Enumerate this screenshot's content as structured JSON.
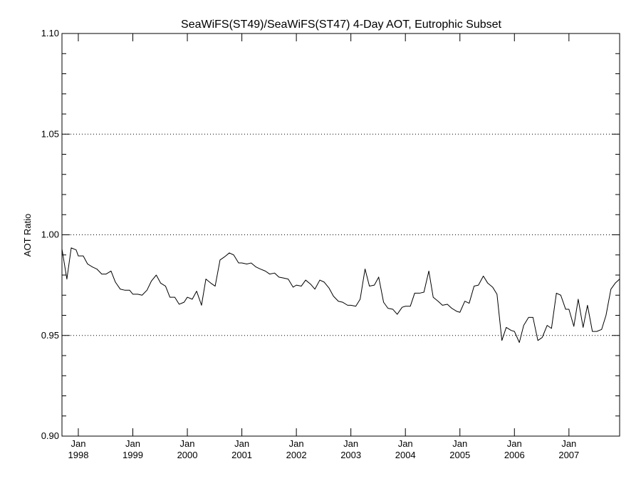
{
  "chart_data": {
    "type": "line",
    "title": "SeaWiFS(ST49)/SeaWiFS(ST47) 4-Day AOT, Eutrophic Subset",
    "xlabel": "",
    "ylabel": "AOT Ratio",
    "xlim": [
      1997.7,
      2007.93
    ],
    "ylim": [
      0.9,
      1.1
    ],
    "yticks": [
      0.9,
      0.95,
      1.0,
      1.05,
      1.1
    ],
    "ytick_labels": [
      "0.90",
      "0.95",
      "1.00",
      "1.05",
      "1.10"
    ],
    "ygrid": [
      0.95,
      1.0,
      1.05
    ],
    "xticks": [
      {
        "x": 1998.0,
        "top": "Jan",
        "bottom": "1998"
      },
      {
        "x": 1999.0,
        "top": "Jan",
        "bottom": "1999"
      },
      {
        "x": 2000.0,
        "top": "Jan",
        "bottom": "2000"
      },
      {
        "x": 2001.0,
        "top": "Jan",
        "bottom": "2001"
      },
      {
        "x": 2002.0,
        "top": "Jan",
        "bottom": "2002"
      },
      {
        "x": 2003.0,
        "top": "Jan",
        "bottom": "2003"
      },
      {
        "x": 2004.0,
        "top": "Jan",
        "bottom": "2004"
      },
      {
        "x": 2005.0,
        "top": "Jan",
        "bottom": "2005"
      },
      {
        "x": 2006.0,
        "top": "Jan",
        "bottom": "2006"
      },
      {
        "x": 2007.0,
        "top": "Jan",
        "bottom": "2007"
      }
    ],
    "series": [
      {
        "color": "#000000",
        "points": [
          [
            1997.7,
            0.993
          ],
          [
            1997.79,
            0.978
          ],
          [
            1997.87,
            0.9935
          ],
          [
            1997.96,
            0.9925
          ],
          [
            1998.0,
            0.9895
          ],
          [
            1998.09,
            0.9895
          ],
          [
            1998.17,
            0.9855
          ],
          [
            1998.26,
            0.984
          ],
          [
            1998.34,
            0.983
          ],
          [
            1998.43,
            0.9805
          ],
          [
            1998.51,
            0.9805
          ],
          [
            1998.6,
            0.982
          ],
          [
            1998.68,
            0.9765
          ],
          [
            1998.77,
            0.973
          ],
          [
            1998.85,
            0.9725
          ],
          [
            1998.94,
            0.9725
          ],
          [
            1999.0,
            0.9705
          ],
          [
            1999.09,
            0.9705
          ],
          [
            1999.17,
            0.97
          ],
          [
            1999.26,
            0.9725
          ],
          [
            1999.34,
            0.977
          ],
          [
            1999.43,
            0.98
          ],
          [
            1999.51,
            0.976
          ],
          [
            1999.6,
            0.9745
          ],
          [
            1999.68,
            0.969
          ],
          [
            1999.77,
            0.969
          ],
          [
            1999.85,
            0.9655
          ],
          [
            1999.94,
            0.9665
          ],
          [
            2000.0,
            0.969
          ],
          [
            2000.09,
            0.968
          ],
          [
            2000.17,
            0.972
          ],
          [
            2000.26,
            0.965
          ],
          [
            2000.34,
            0.978
          ],
          [
            2000.43,
            0.976
          ],
          [
            2000.51,
            0.9745
          ],
          [
            2000.6,
            0.9875
          ],
          [
            2000.68,
            0.989
          ],
          [
            2000.77,
            0.991
          ],
          [
            2000.85,
            0.99
          ],
          [
            2000.94,
            0.986
          ],
          [
            2001.0,
            0.986
          ],
          [
            2001.09,
            0.9855
          ],
          [
            2001.17,
            0.986
          ],
          [
            2001.26,
            0.984
          ],
          [
            2001.34,
            0.983
          ],
          [
            2001.43,
            0.982
          ],
          [
            2001.51,
            0.9805
          ],
          [
            2001.6,
            0.981
          ],
          [
            2001.68,
            0.979
          ],
          [
            2001.77,
            0.9785
          ],
          [
            2001.85,
            0.978
          ],
          [
            2001.94,
            0.974
          ],
          [
            2002.0,
            0.975
          ],
          [
            2002.09,
            0.9745
          ],
          [
            2002.17,
            0.9775
          ],
          [
            2002.26,
            0.9755
          ],
          [
            2002.34,
            0.973
          ],
          [
            2002.43,
            0.9775
          ],
          [
            2002.51,
            0.9765
          ],
          [
            2002.6,
            0.9735
          ],
          [
            2002.68,
            0.9695
          ],
          [
            2002.77,
            0.967
          ],
          [
            2002.85,
            0.9665
          ],
          [
            2002.94,
            0.965
          ],
          [
            2003.0,
            0.965
          ],
          [
            2003.09,
            0.9645
          ],
          [
            2003.17,
            0.968
          ],
          [
            2003.26,
            0.983
          ],
          [
            2003.34,
            0.9745
          ],
          [
            2003.43,
            0.975
          ],
          [
            2003.51,
            0.979
          ],
          [
            2003.6,
            0.9665
          ],
          [
            2003.68,
            0.9635
          ],
          [
            2003.77,
            0.963
          ],
          [
            2003.85,
            0.9605
          ],
          [
            2003.94,
            0.964
          ],
          [
            2004.0,
            0.9645
          ],
          [
            2004.09,
            0.9645
          ],
          [
            2004.17,
            0.971
          ],
          [
            2004.26,
            0.971
          ],
          [
            2004.34,
            0.9715
          ],
          [
            2004.43,
            0.982
          ],
          [
            2004.51,
            0.969
          ],
          [
            2004.6,
            0.967
          ],
          [
            2004.68,
            0.965
          ],
          [
            2004.77,
            0.9655
          ],
          [
            2004.85,
            0.9635
          ],
          [
            2004.94,
            0.962
          ],
          [
            2005.0,
            0.9615
          ],
          [
            2005.09,
            0.967
          ],
          [
            2005.17,
            0.966
          ],
          [
            2005.26,
            0.9745
          ],
          [
            2005.34,
            0.975
          ],
          [
            2005.43,
            0.9795
          ],
          [
            2005.51,
            0.976
          ],
          [
            2005.6,
            0.974
          ],
          [
            2005.68,
            0.9705
          ],
          [
            2005.77,
            0.9475
          ],
          [
            2005.85,
            0.954
          ],
          [
            2005.94,
            0.9525
          ],
          [
            2006.0,
            0.952
          ],
          [
            2006.09,
            0.9465
          ],
          [
            2006.17,
            0.955
          ],
          [
            2006.26,
            0.959
          ],
          [
            2006.34,
            0.959
          ],
          [
            2006.43,
            0.9475
          ],
          [
            2006.51,
            0.949
          ],
          [
            2006.6,
            0.955
          ],
          [
            2006.68,
            0.9535
          ],
          [
            2006.77,
            0.971
          ],
          [
            2006.85,
            0.97
          ],
          [
            2006.94,
            0.963
          ],
          [
            2007.0,
            0.963
          ],
          [
            2007.09,
            0.9545
          ],
          [
            2007.17,
            0.968
          ],
          [
            2007.26,
            0.954
          ],
          [
            2007.34,
            0.965
          ],
          [
            2007.43,
            0.952
          ],
          [
            2007.51,
            0.952
          ],
          [
            2007.6,
            0.953
          ],
          [
            2007.68,
            0.96
          ],
          [
            2007.77,
            0.973
          ],
          [
            2007.85,
            0.976
          ],
          [
            2007.93,
            0.978
          ]
        ]
      }
    ]
  }
}
